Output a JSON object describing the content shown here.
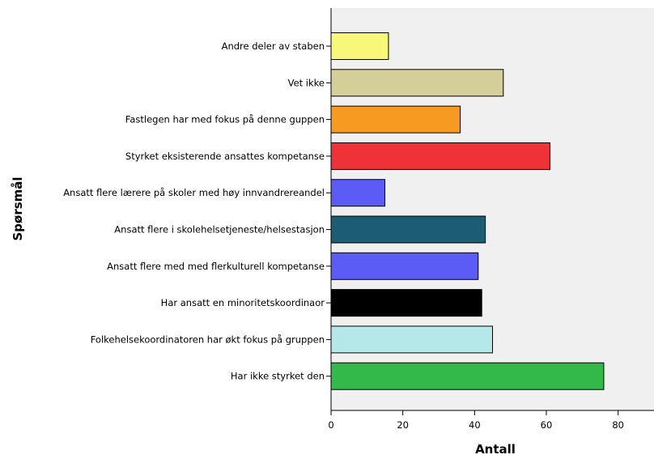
{
  "chart_data": {
    "type": "bar",
    "orientation": "horizontal",
    "xlabel": "Antall",
    "ylabel": "Spørsmål",
    "xlim": [
      0,
      90
    ],
    "xticks": [
      0,
      20,
      40,
      60,
      80
    ],
    "grid": false,
    "legend": "none",
    "plot_background": "#f0f0f0",
    "categories": [
      "Andre deler av staben",
      "Vet ikke",
      "Fastlegen har med fokus på denne guppen",
      "Styrket eksisterende ansattes kompetanse",
      "Ansatt flere lærere på skoler med høy innvandrereandel",
      "Ansatt flere i skolehelsetjeneste/helsestasjon",
      "Ansatt flere med med flerkulturell kompetanse",
      "Har ansatt en minoritetskoordinaor",
      "Folkehelsekoordinatoren har økt fokus på gruppen",
      "Har ikke styrket den"
    ],
    "values": [
      16,
      48,
      36,
      61,
      15,
      43,
      41,
      42,
      45,
      76
    ],
    "colors": [
      "#f7f77a",
      "#d4cf98",
      "#f79a22",
      "#ef3237",
      "#5b5bf6",
      "#1c5d73",
      "#5b5bf6",
      "#000000",
      "#b5e8e8",
      "#33b84a"
    ]
  }
}
